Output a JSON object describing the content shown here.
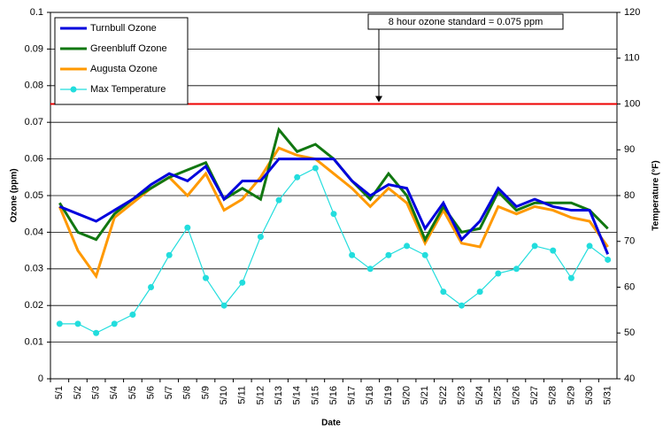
{
  "chart_data": {
    "type": "line",
    "x_label": "Date",
    "y_label": "Ozone (ppm)",
    "y2_label": "Temperature (°F)",
    "categories": [
      "5/1",
      "5/2",
      "5/3",
      "5/4",
      "5/5",
      "5/6",
      "5/7",
      "5/8",
      "5/9",
      "5/10",
      "5/11",
      "5/12",
      "5/13",
      "5/14",
      "5/15",
      "5/16",
      "5/17",
      "5/18",
      "5/19",
      "5/20",
      "5/21",
      "5/22",
      "5/23",
      "5/24",
      "5/25",
      "5/26",
      "5/27",
      "5/28",
      "5/29",
      "5/30",
      "5/31"
    ],
    "series": [
      {
        "name": "Turnbull Ozone",
        "color": "#0000dd",
        "values": [
          0.047,
          0.045,
          0.043,
          0.046,
          0.049,
          0.053,
          0.056,
          0.054,
          0.058,
          0.049,
          0.054,
          0.054,
          0.06,
          0.06,
          0.06,
          0.06,
          0.054,
          0.05,
          0.053,
          0.052,
          0.041,
          0.048,
          0.038,
          0.043,
          0.052,
          0.047,
          0.049,
          0.047,
          0.046,
          0.046,
          0.034
        ]
      },
      {
        "name": "Greenbluff Ozone",
        "color": "#117711",
        "values": [
          0.048,
          0.04,
          0.038,
          0.045,
          0.049,
          0.052,
          0.055,
          0.057,
          0.059,
          0.049,
          0.052,
          0.049,
          0.068,
          0.062,
          0.064,
          0.06,
          0.054,
          0.049,
          0.056,
          0.05,
          0.038,
          0.047,
          0.04,
          0.041,
          0.051,
          0.046,
          0.048,
          0.048,
          0.048,
          0.046,
          0.041
        ]
      },
      {
        "name": "Augusta Ozone",
        "color": "#ff9900",
        "values": [
          0.047,
          0.035,
          0.028,
          0.044,
          0.048,
          0.052,
          0.055,
          0.05,
          0.056,
          0.046,
          0.049,
          0.055,
          0.063,
          0.061,
          0.06,
          0.056,
          0.052,
          0.047,
          0.052,
          0.048,
          0.037,
          0.046,
          0.037,
          0.036,
          0.047,
          0.045,
          0.047,
          0.046,
          0.044,
          0.043,
          0.036
        ]
      },
      {
        "name": "Max Temperature",
        "color": "#22dddd",
        "axis": "y2",
        "marker": "circle",
        "values": [
          52,
          52,
          50,
          52,
          54,
          60,
          67,
          73,
          62,
          56,
          61,
          71,
          79,
          84,
          86,
          76,
          67,
          64,
          67,
          69,
          67,
          59,
          56,
          59,
          63,
          64,
          69,
          68,
          62,
          69,
          66
        ]
      }
    ],
    "reference_line": {
      "value": 0.075,
      "color": "#ee0000",
      "label": "8 hour ozone standard = 0.075 ppm"
    },
    "ylim": [
      0,
      0.1
    ],
    "yticks": [
      0,
      0.01,
      0.02,
      0.03,
      0.04,
      0.05,
      0.06,
      0.07,
      0.08,
      0.09,
      0.1
    ],
    "y2lim": [
      40,
      120
    ],
    "y2ticks": [
      40,
      50,
      60,
      70,
      80,
      90,
      100,
      110,
      120
    ],
    "grid": true,
    "legend": "upper-left"
  }
}
